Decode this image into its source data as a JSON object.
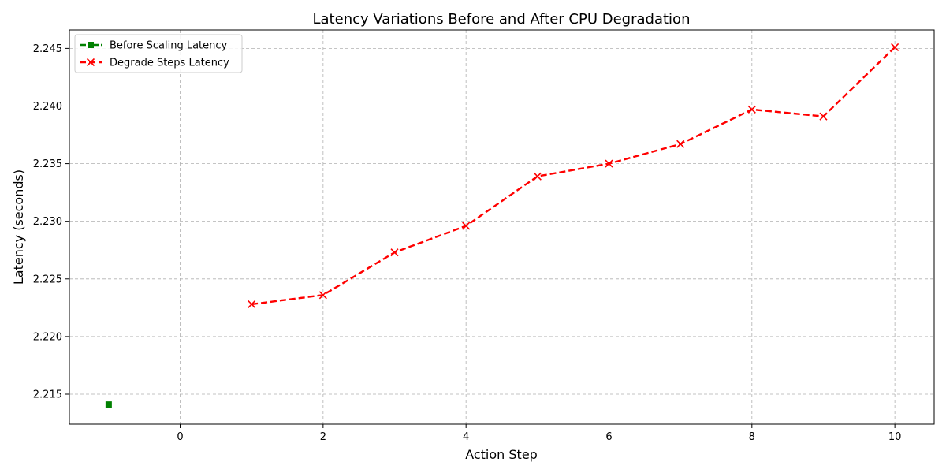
{
  "chart_data": {
    "type": "line",
    "title": "Latency Variations Before and After CPU Degradation",
    "xlabel": "Action Step",
    "ylabel": "Latency (seconds)",
    "xlim": [
      -1.55,
      10.55
    ],
    "ylim": [
      2.2124,
      2.2466
    ],
    "xticks": [
      0,
      2,
      4,
      6,
      8,
      10
    ],
    "yticks": [
      2.215,
      2.22,
      2.225,
      2.23,
      2.235,
      2.24,
      2.245
    ],
    "grid": true,
    "legend_position": "top-left",
    "series": [
      {
        "name": "Before Scaling Latency",
        "color": "#008000",
        "marker": "square",
        "line_style": "dash-dot",
        "x": [
          -1
        ],
        "y": [
          2.2141
        ]
      },
      {
        "name": "Degrade Steps Latency",
        "color": "#ff0000",
        "marker": "x",
        "line_style": "dashed",
        "x": [
          1,
          2,
          3,
          4,
          5,
          6,
          7,
          8,
          9,
          10
        ],
        "y": [
          2.2228,
          2.2236,
          2.2273,
          2.2296,
          2.2339,
          2.235,
          2.2367,
          2.2397,
          2.2391,
          2.2451
        ]
      }
    ]
  }
}
